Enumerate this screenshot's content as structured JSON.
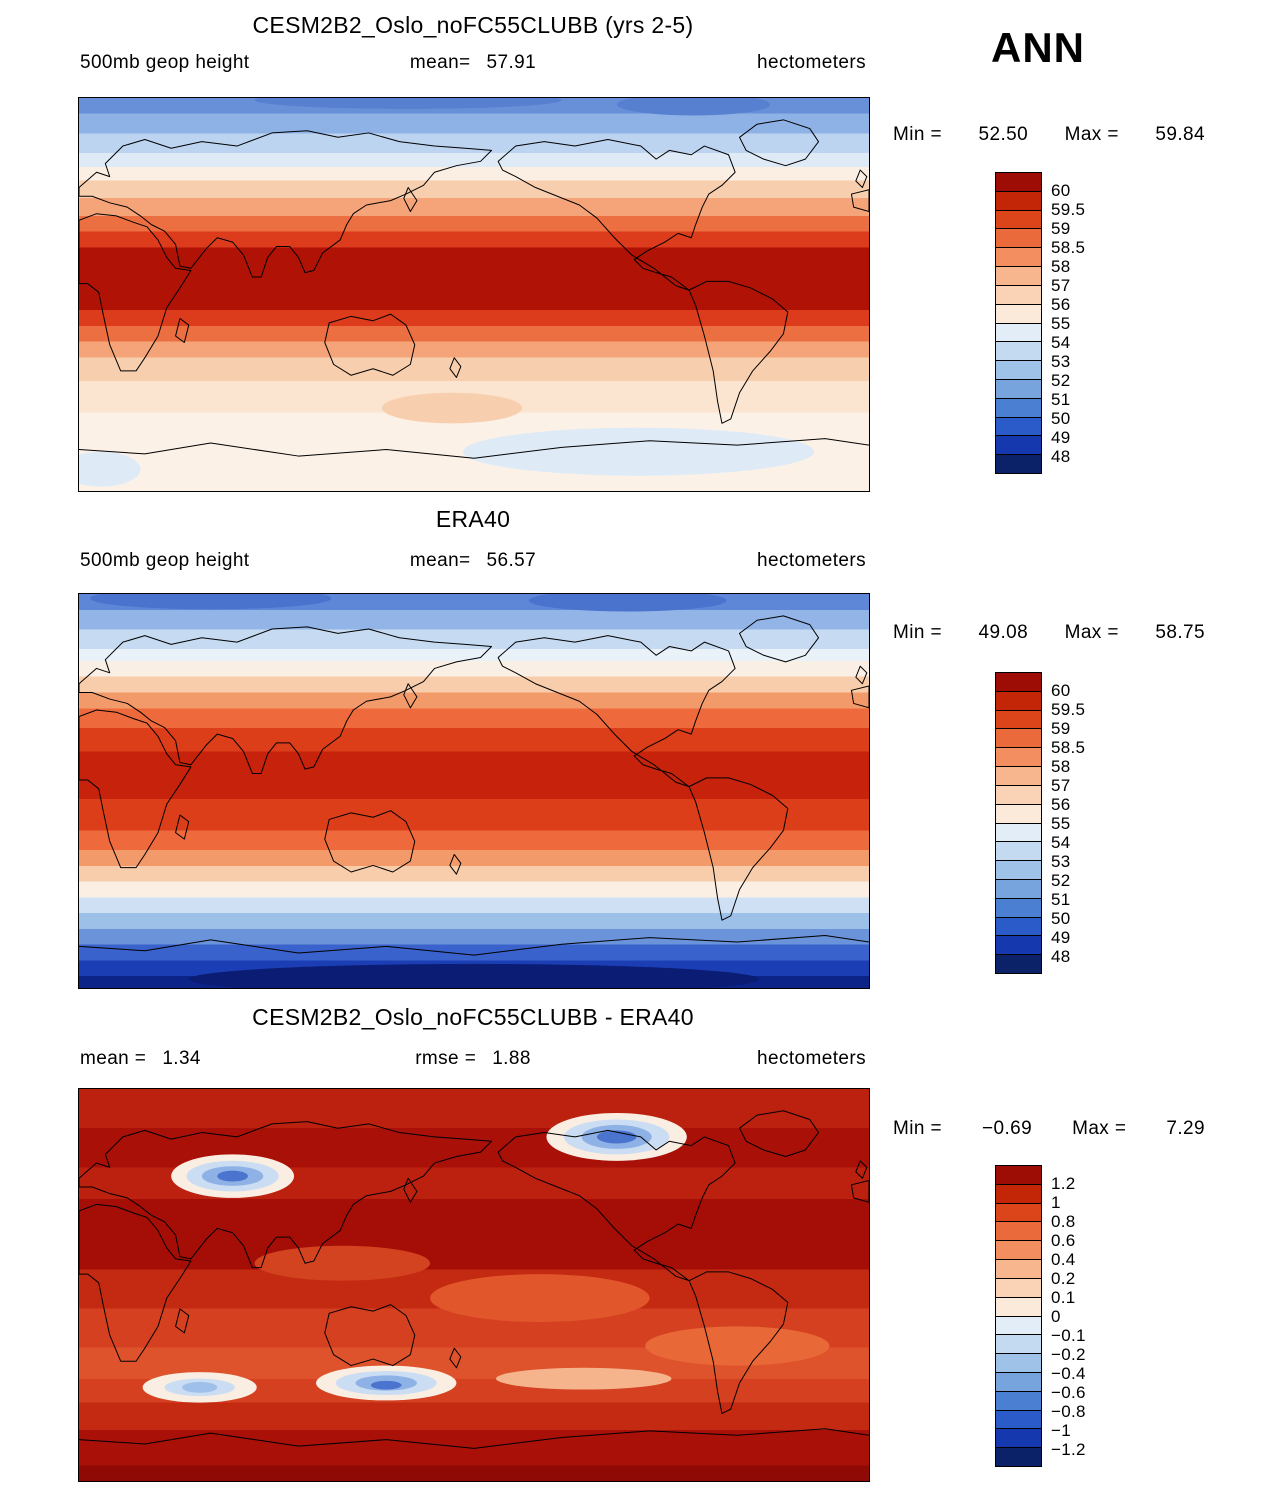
{
  "page": {
    "season": "ANN"
  },
  "panels": [
    {
      "title": "CESM2B2_Oslo_noFC55CLUBB (yrs 2-5)",
      "variable": "500mb geop height",
      "mean_label": "mean=",
      "mean_value": "57.91",
      "units": "hectometers",
      "min_label": "Min =",
      "min_value": "52.50",
      "max_label": "Max =",
      "max_value": "59.84",
      "colorbar": {
        "colors": [
          "#9E0C06",
          "#C32606",
          "#DC4519",
          "#EA6A3C",
          "#F28E60",
          "#F7B68D",
          "#FAD3B6",
          "#FBE9DA",
          "#E2EDF8",
          "#C3DAF1",
          "#9FC2E8",
          "#77A4DD",
          "#4B7FD2",
          "#2A5BC8",
          "#1638AE",
          "#0B2168"
        ],
        "labels": [
          "60",
          "59.5",
          "59",
          "58.5",
          "58",
          "57",
          "56",
          "55",
          "54",
          "53",
          "52",
          "51",
          "50",
          "49",
          "48"
        ]
      }
    },
    {
      "title": "ERA40",
      "variable": "500mb geop height",
      "mean_label": "mean=",
      "mean_value": "56.57",
      "units": "hectometers",
      "min_label": "Min =",
      "min_value": "49.08",
      "max_label": "Max =",
      "max_value": "58.75",
      "colorbar": {
        "colors": [
          "#9E0C06",
          "#C32606",
          "#DC4519",
          "#EA6A3C",
          "#F28E60",
          "#F7B68D",
          "#FAD3B6",
          "#FBE9DA",
          "#E2EDF8",
          "#C3DAF1",
          "#9FC2E8",
          "#77A4DD",
          "#4B7FD2",
          "#2A5BC8",
          "#1638AE",
          "#0B2168"
        ],
        "labels": [
          "60",
          "59.5",
          "59",
          "58.5",
          "58",
          "57",
          "56",
          "55",
          "54",
          "53",
          "52",
          "51",
          "50",
          "49",
          "48"
        ]
      }
    },
    {
      "title": "CESM2B2_Oslo_noFC55CLUBB - ERA40",
      "mean_label": "mean =",
      "mean_value": "1.34",
      "rmse_label": "rmse =",
      "rmse_value": "1.88",
      "units": "hectometers",
      "min_label": "Min =",
      "min_value": "−0.69",
      "max_label": "Max =",
      "max_value": "7.29",
      "colorbar": {
        "colors": [
          "#9E0C06",
          "#C32606",
          "#DC4519",
          "#EA6A3C",
          "#F28E60",
          "#F7B68D",
          "#FAD3B6",
          "#FBE9DA",
          "#E2EDF8",
          "#C3DAF1",
          "#9FC2E8",
          "#77A4DD",
          "#4B7FD2",
          "#2A5BC8",
          "#1638AE",
          "#0B2168"
        ],
        "labels": [
          "1.2",
          "1",
          "0.8",
          "0.6",
          "0.4",
          "0.2",
          "0.1",
          "0",
          "−0.1",
          "−0.2",
          "−0.4",
          "−0.6",
          "−0.8",
          "−1",
          "−1.2"
        ]
      }
    }
  ],
  "chart_data": [
    {
      "type": "heatmap",
      "title": "CESM2B2_Oslo_noFC55CLUBB (yrs 2-5)",
      "variable": "500mb geop height",
      "units": "hectometers",
      "season": "ANN",
      "mean": 57.91,
      "min": 52.5,
      "max": 59.84,
      "contour_levels": [
        48,
        49,
        50,
        51,
        52,
        53,
        54,
        55,
        56,
        57,
        58,
        58.5,
        59,
        59.5,
        60
      ],
      "extent": {
        "lon": [
          0,
          360
        ],
        "lat": [
          -90,
          90
        ]
      },
      "legend_position": "right",
      "pattern": "zonal bands: blues over the Arctic, dark-red maximum (59.5-60) across the tropics, pale cream with light-blue patches toward the southern high latitudes"
    },
    {
      "type": "heatmap",
      "title": "ERA40",
      "variable": "500mb geop height",
      "units": "hectometers",
      "season": "ANN",
      "mean": 56.57,
      "min": 49.08,
      "max": 58.75,
      "contour_levels": [
        48,
        49,
        50,
        51,
        52,
        53,
        54,
        55,
        56,
        57,
        58,
        58.5,
        59,
        59.5,
        60
      ],
      "extent": {
        "lon": [
          0,
          360
        ],
        "lat": [
          -90,
          90
        ]
      },
      "legend_position": "right",
      "pattern": "zonal bands: blues over the Arctic, strong red tropics (58.5-59), deep blue belt over the Southern Ocean and Antarctica (48-51)"
    },
    {
      "type": "heatmap",
      "kind": "difference",
      "title": "CESM2B2_Oslo_noFC55CLUBB - ERA40",
      "units": "hectometers",
      "season": "ANN",
      "mean": 1.34,
      "rmse": 1.88,
      "min": -0.69,
      "max": 7.29,
      "contour_levels": [
        -1.2,
        -1,
        -0.8,
        -0.6,
        -0.4,
        -0.2,
        -0.1,
        0,
        0.1,
        0.2,
        0.4,
        0.6,
        0.8,
        1,
        1.2
      ],
      "extent": {
        "lon": [
          0,
          360
        ],
        "lat": [
          -90,
          90
        ]
      },
      "legend_position": "right",
      "pattern": "predominantly positive (red, >1.2) globally; negative/near-zero blue pockets over central Eurasia, northern Canada/Greenland, and south of Australia / southern Indian Ocean; strongest positive band at southern high latitudes"
    }
  ]
}
